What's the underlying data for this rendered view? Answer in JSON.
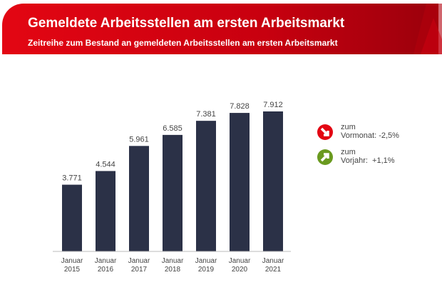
{
  "header": {
    "title": "Gemeldete Arbeitsstellen am ersten Arbeitsmarkt",
    "subtitle": "Zeitreihe zum Bestand an gemeldeten Arbeitsstellen am ersten Arbeitsmarkt"
  },
  "colors": {
    "brand": "#e30613",
    "bar": "#2b3147",
    "down": "#e30613",
    "up": "#6a9a1f"
  },
  "kpis": [
    {
      "icon": "arrow-down-right-icon",
      "line1": "zum",
      "line2": "Vormonat: -2,5%"
    },
    {
      "icon": "arrow-up-right-icon",
      "line1": "zum",
      "line2": "Vorjahr:  +1,1%"
    }
  ],
  "chart_data": {
    "type": "bar",
    "categories": [
      [
        "Januar",
        "2015"
      ],
      [
        "Januar",
        "2016"
      ],
      [
        "Januar",
        "2017"
      ],
      [
        "Januar",
        "2018"
      ],
      [
        "Januar",
        "2019"
      ],
      [
        "Januar",
        "2020"
      ],
      [
        "Januar",
        "2021"
      ]
    ],
    "values": [
      3771,
      4544,
      5961,
      6585,
      7381,
      7828,
      7912
    ],
    "data_labels": [
      "3.771",
      "4.544",
      "5.961",
      "6.585",
      "7.381",
      "7.828",
      "7.912"
    ],
    "ylim": [
      0,
      8000
    ],
    "grid": false
  }
}
